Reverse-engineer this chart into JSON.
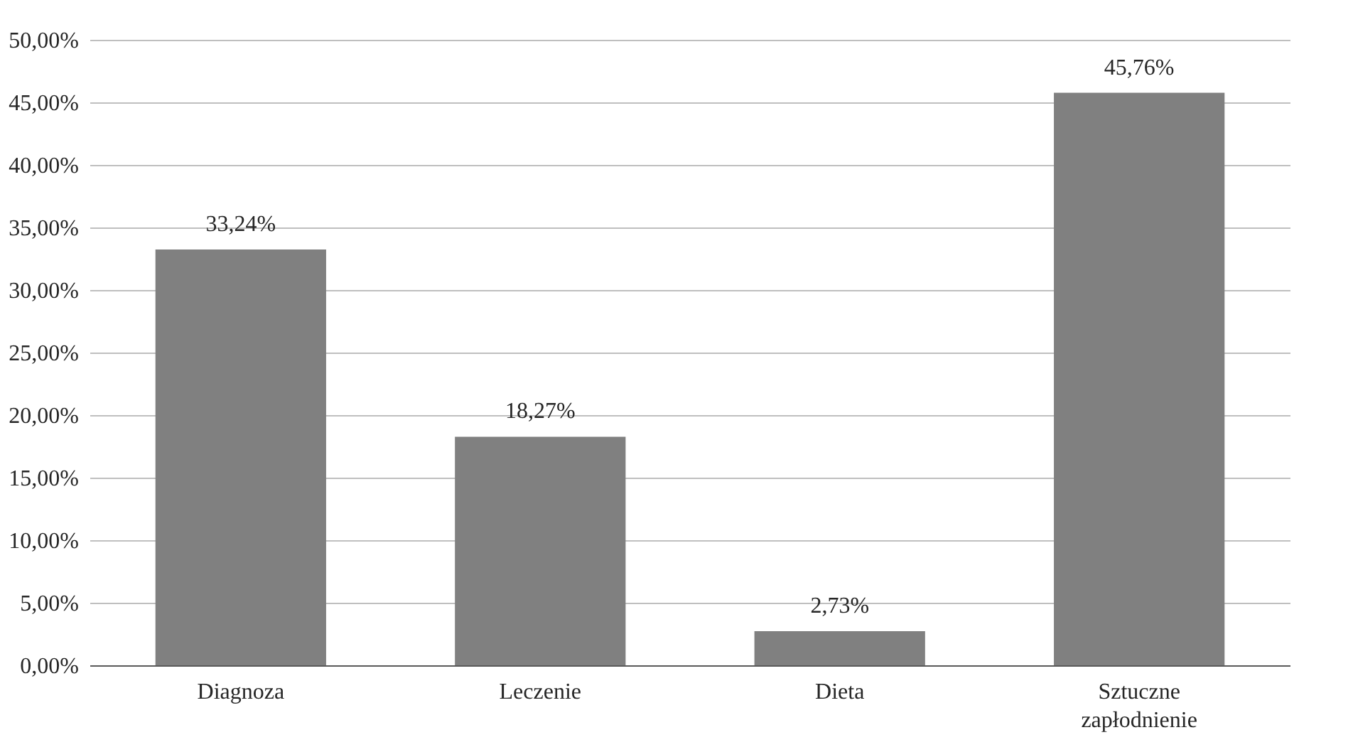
{
  "chart_data": {
    "type": "bar",
    "categories": [
      "Diagnoza",
      "Leczenie",
      "Dieta",
      "Sztuczne zapłodnienie"
    ],
    "values": [
      33.24,
      18.27,
      2.73,
      45.76
    ],
    "color": "#808080",
    "value_labels": [
      "33,24%",
      "18,27%",
      "2,73%",
      "45,76%"
    ],
    "ylim": [
      0,
      50
    ],
    "yticks": [
      {
        "value": 0,
        "label": "0,00%"
      },
      {
        "value": 5,
        "label": "5,00%"
      },
      {
        "value": 10,
        "label": "10,00%"
      },
      {
        "value": 15,
        "label": "15,00%"
      },
      {
        "value": 20,
        "label": "20,00%"
      },
      {
        "value": 25,
        "label": "25,00%"
      },
      {
        "value": 30,
        "label": "30,00%"
      },
      {
        "value": 35,
        "label": "35,00%"
      },
      {
        "value": 40,
        "label": "40,00%"
      },
      {
        "value": 45,
        "label": "45,00%"
      },
      {
        "value": 50,
        "label": "50,00%"
      }
    ],
    "grid": "y"
  }
}
